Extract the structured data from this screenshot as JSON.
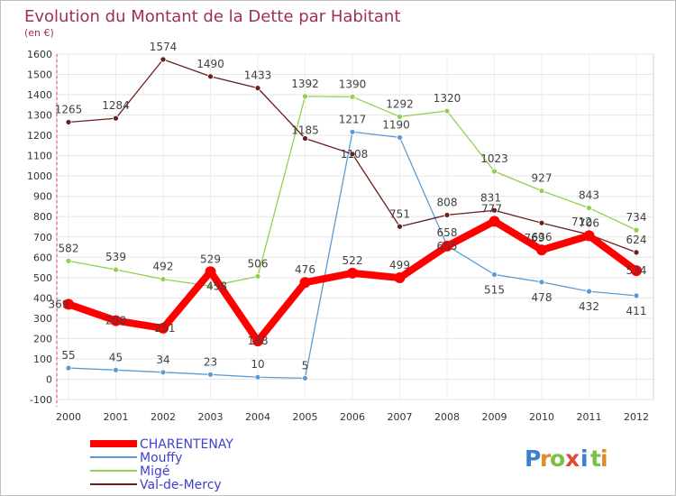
{
  "chart_data": {
    "type": "line",
    "title": "Evolution du Montant de la Dette par Habitant",
    "subtitle": "(en €)",
    "x": [
      "2000",
      "2001",
      "2002",
      "2003",
      "2004",
      "2005",
      "2006",
      "2007",
      "2008",
      "2009",
      "2010",
      "2011",
      "2012"
    ],
    "ylim": [
      -100,
      1600
    ],
    "yticks": [
      -100,
      0,
      100,
      200,
      300,
      400,
      500,
      600,
      700,
      800,
      900,
      1000,
      1100,
      1200,
      1300,
      1400,
      1500,
      1600
    ],
    "grid": true,
    "legend_position": "bottom-left",
    "series": [
      {
        "name": "Mouffy",
        "color": "#5b9bd5",
        "values": [
          55,
          45,
          34,
          23,
          10,
          5,
          1217,
          1190,
          658,
          515,
          478,
          432,
          411
        ]
      },
      {
        "name": "Migé",
        "color": "#92d050",
        "values": [
          582,
          539,
          492,
          458,
          506,
          1392,
          1390,
          1292,
          1320,
          1023,
          927,
          843,
          734
        ]
      },
      {
        "name": "Val-de-Mercy",
        "color": "#6b1e1e",
        "values": [
          1265,
          1284,
          1574,
          1490,
          1433,
          1185,
          1108,
          751,
          808,
          831,
          769,
          712,
          624
        ]
      },
      {
        "name": "CHARENTENAY",
        "color": "#ff0000",
        "values": [
          369,
          288,
          251,
          529,
          188,
          476,
          522,
          499,
          655,
          777,
          636,
          706,
          534
        ]
      }
    ],
    "legend": [
      "CHARENTENAY",
      "Mouffy",
      "Migé",
      "Val-de-Mercy"
    ]
  },
  "logo": {
    "letters": [
      "P",
      "r",
      "o",
      "x",
      "i",
      "t",
      "i"
    ]
  },
  "colors": {
    "frame": "#bfbfbf",
    "grid": "#e6e6e6",
    "axis_text": "#333333",
    "legend_text": "#4040d0",
    "title_text": "#a03050"
  }
}
